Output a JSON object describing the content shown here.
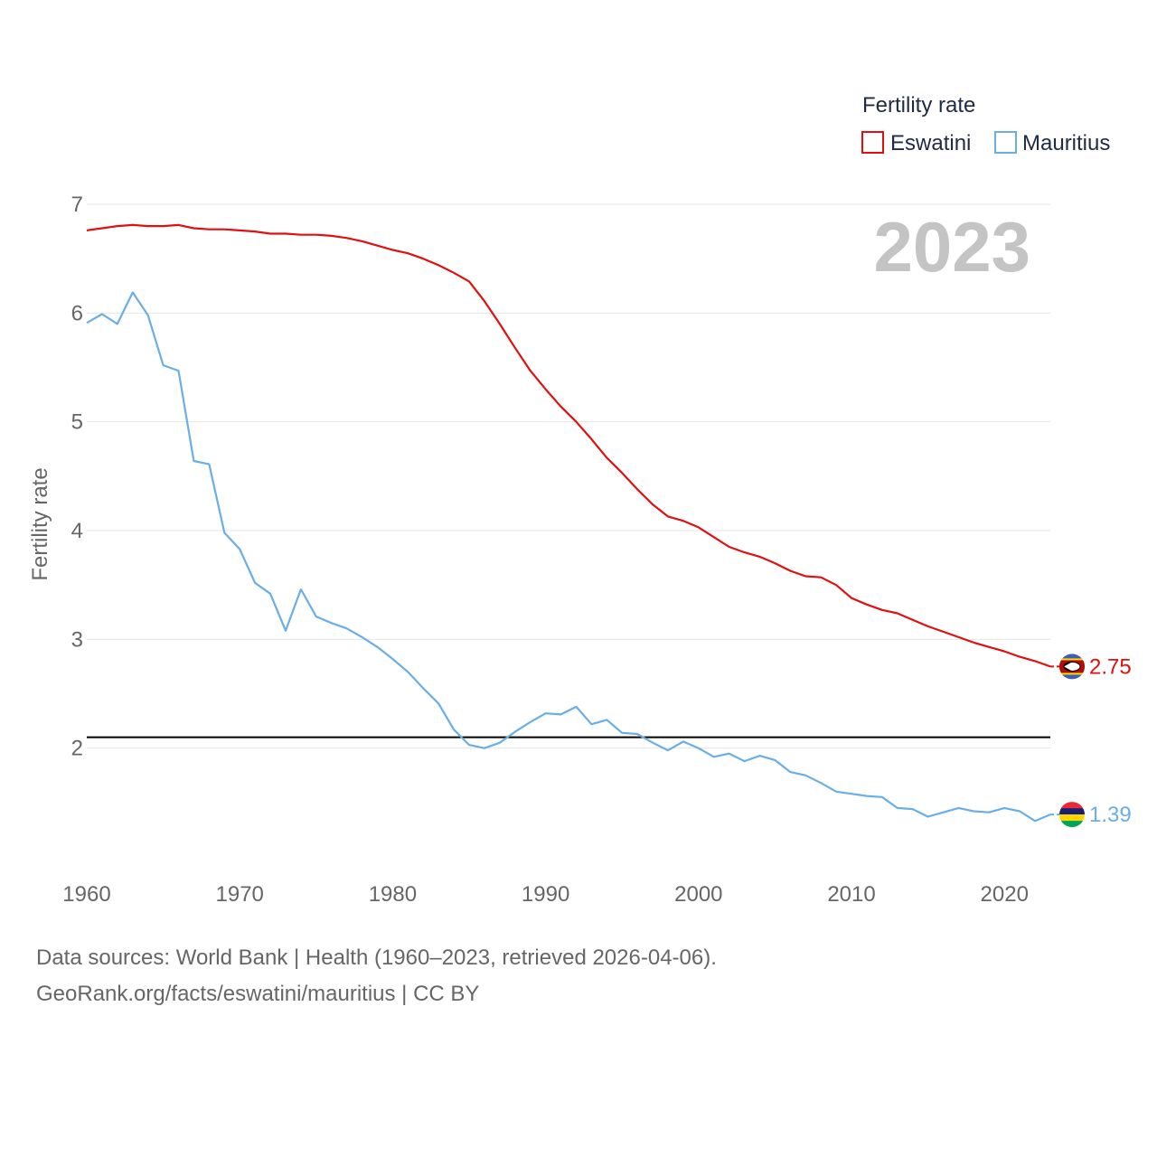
{
  "colors": {
    "eswatini": "#e01010",
    "mauritius": "#6aaee8",
    "grid": "#e6e6e6",
    "reference_line": "#000000"
  },
  "chart_data": {
    "type": "line",
    "title": "",
    "xlabel": "",
    "ylabel": "Fertility rate",
    "legend_title": "Fertility rate",
    "legend_position": "top-right",
    "current_year_label": "2023",
    "xlim": [
      1960,
      2023
    ],
    "ylim": [
      1,
      7
    ],
    "x_ticks": [
      1960,
      1970,
      1980,
      1990,
      2000,
      2010,
      2020
    ],
    "y_ticks": [
      2,
      3,
      4,
      5,
      6,
      7
    ],
    "reference_line": 2.1,
    "x": [
      1960,
      1961,
      1962,
      1963,
      1964,
      1965,
      1966,
      1967,
      1968,
      1969,
      1970,
      1971,
      1972,
      1973,
      1974,
      1975,
      1976,
      1977,
      1978,
      1979,
      1980,
      1981,
      1982,
      1983,
      1984,
      1985,
      1986,
      1987,
      1988,
      1989,
      1990,
      1991,
      1992,
      1993,
      1994,
      1995,
      1996,
      1997,
      1998,
      1999,
      2000,
      2001,
      2002,
      2003,
      2004,
      2005,
      2006,
      2007,
      2008,
      2009,
      2010,
      2011,
      2012,
      2013,
      2014,
      2015,
      2016,
      2017,
      2018,
      2019,
      2020,
      2021,
      2022,
      2023
    ],
    "series": [
      {
        "name": "Eswatini",
        "color_key": "eswatini",
        "end_label": "2.75",
        "flag": "eswatini-flag-icon",
        "values": [
          6.76,
          6.78,
          6.8,
          6.81,
          6.8,
          6.8,
          6.81,
          6.78,
          6.77,
          6.77,
          6.76,
          6.75,
          6.73,
          6.73,
          6.72,
          6.72,
          6.71,
          6.69,
          6.66,
          6.62,
          6.58,
          6.55,
          6.5,
          6.44,
          6.37,
          6.29,
          6.11,
          5.9,
          5.68,
          5.47,
          5.3,
          5.14,
          5.0,
          4.84,
          4.67,
          4.53,
          4.38,
          4.24,
          4.13,
          4.09,
          4.03,
          3.94,
          3.85,
          3.8,
          3.76,
          3.7,
          3.63,
          3.58,
          3.57,
          3.5,
          3.38,
          3.32,
          3.27,
          3.24,
          3.18,
          3.12,
          3.07,
          3.02,
          2.97,
          2.93,
          2.89,
          2.84,
          2.8,
          2.75
        ]
      },
      {
        "name": "Mauritius",
        "color_key": "mauritius",
        "end_label": "1.39",
        "flag": "mauritius-flag-icon",
        "values": [
          5.91,
          5.99,
          5.9,
          6.19,
          5.98,
          5.52,
          5.47,
          4.64,
          4.61,
          3.98,
          3.83,
          3.52,
          3.42,
          3.08,
          3.46,
          3.21,
          3.15,
          3.1,
          3.02,
          2.93,
          2.82,
          2.7,
          2.55,
          2.41,
          2.17,
          2.03,
          2.0,
          2.05,
          2.15,
          2.24,
          2.32,
          2.31,
          2.38,
          2.22,
          2.26,
          2.14,
          2.13,
          2.05,
          1.98,
          2.06,
          2.0,
          1.92,
          1.95,
          1.88,
          1.93,
          1.89,
          1.78,
          1.75,
          1.68,
          1.6,
          1.58,
          1.56,
          1.55,
          1.45,
          1.44,
          1.37,
          1.41,
          1.45,
          1.42,
          1.41,
          1.45,
          1.42,
          1.33,
          1.39
        ]
      }
    ]
  },
  "footer": {
    "line1": "Data sources: World Bank | Health (1960–2023, retrieved 2026-04-06).",
    "line2": "GeoRank.org/facts/eswatini/mauritius | CC BY"
  }
}
